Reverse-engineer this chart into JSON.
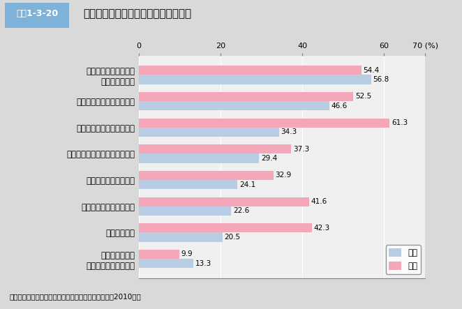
{
  "title": "未婚者が結婚について不安に思うこと",
  "title_prefix": "図表1-3-20",
  "categories": [
    "経済的に十分な生活が\nできるかどうか",
    "配偶者と心が通わなくなる",
    "配偶者の親族とのつきあい",
    "自分の自由時間がとれなくなる",
    "子どもの教育やしつけ",
    "配偶者や自分の親の介護",
    "出産・子育て",
    "正規雇用でなく\n雇用が安定していない"
  ],
  "male_values": [
    56.8,
    46.6,
    34.3,
    29.4,
    24.1,
    22.6,
    20.5,
    13.3
  ],
  "female_values": [
    54.4,
    52.5,
    61.3,
    37.3,
    32.9,
    41.6,
    42.3,
    9.9
  ],
  "male_color": "#b8cce4",
  "female_color": "#f4a7b9",
  "xlabel": "(%)",
  "xlim": [
    0,
    70
  ],
  "xticks": [
    0,
    20,
    40,
    60,
    70
  ],
  "background_color": "#d9d9d9",
  "plot_background": "#f0f0f0",
  "footer": "資料：内閣府「結婚・家族形成に関する意識調査」（2010年）",
  "legend_male": "男性",
  "legend_female": "女性",
  "bar_height": 0.35,
  "title_bg_color": "#c8d400",
  "title_prefix_bg": "#4a6fa5"
}
